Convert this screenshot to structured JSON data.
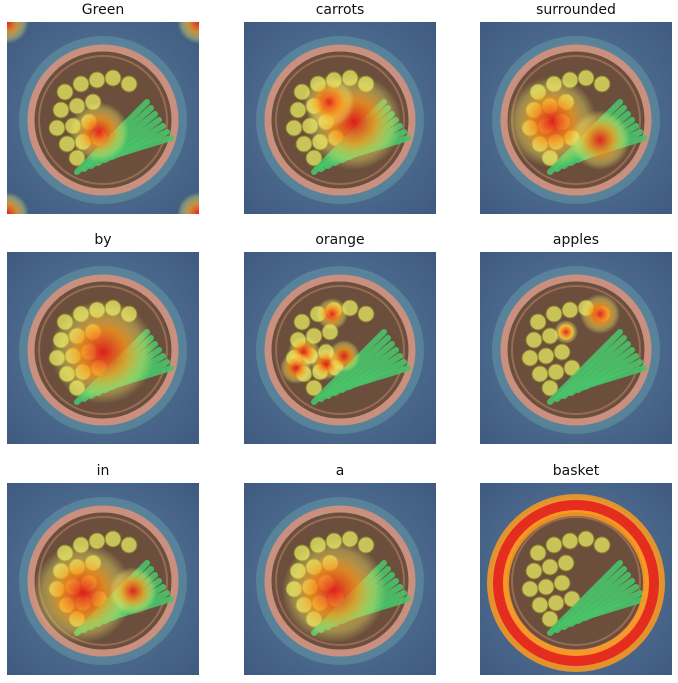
{
  "grid": {
    "panels": [
      {
        "title": "Green"
      },
      {
        "title": "carrots"
      },
      {
        "title": "surrounded"
      },
      {
        "title": "by"
      },
      {
        "title": "orange"
      },
      {
        "title": "apples"
      },
      {
        "title": "in"
      },
      {
        "title": "a"
      },
      {
        "title": "basket"
      }
    ]
  },
  "colors": {
    "background_stone": "#3f5a7f",
    "basket_rim": "#c98f7f",
    "apple": "#c9c45a",
    "leek": "#49c46a",
    "heat_high": "#e31a1c",
    "heat_mid": "#ff9a1c",
    "heat_low": "#f4f06c"
  }
}
